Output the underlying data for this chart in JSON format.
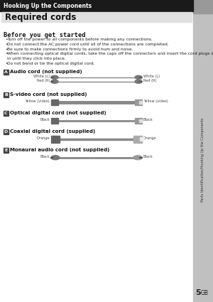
{
  "header_text": "Hooking Up the Components",
  "header_bg": "#1a1a1a",
  "header_fg": "#ffffff",
  "title": "Required cords",
  "title_bg": "#e0e0e0",
  "section_heading": "Before you get started",
  "bullets": [
    "Turn off the power to all components before making any connections.",
    "Do not connect the AC power cord until all of the connections are completed.",
    "Be sure to make connections firmly to avoid hum and noise.",
    "When connecting optical digital cords, take the caps off the connectors and insert the cord plugs straight in until they click into place.",
    "Do not bend or tie the optical digital cord."
  ],
  "cords": [
    {
      "label": "A",
      "name": "Audio cord (not supplied)",
      "left_label": "White (L)\nRed (R)",
      "right_label": "White (L)\nRed (R)",
      "type": "audio"
    },
    {
      "label": "B",
      "name": "S-video cord (not supplied)",
      "left_label": "Yellow (video)",
      "right_label": "Yellow (video)",
      "type": "svideo"
    },
    {
      "label": "C",
      "name": "Optical digital cord (not supplied)",
      "left_label": "Black",
      "right_label": "Black",
      "type": "optical"
    },
    {
      "label": "D",
      "name": "Coaxial digital cord (supplied)",
      "left_label": "Orange",
      "right_label": "Orange",
      "type": "coaxial"
    },
    {
      "label": "E",
      "name": "Monaural audio cord (not supplied)",
      "left_label": "Black",
      "right_label": "Black",
      "type": "mono"
    }
  ],
  "sidebar_text": "Parts Identification/Hooking Up the Components",
  "page_number": "5",
  "page_suffix": "GB",
  "bg_color": "#f0f0f0",
  "sidebar_bg": "#c0c0c0",
  "content_bg": "#ffffff"
}
